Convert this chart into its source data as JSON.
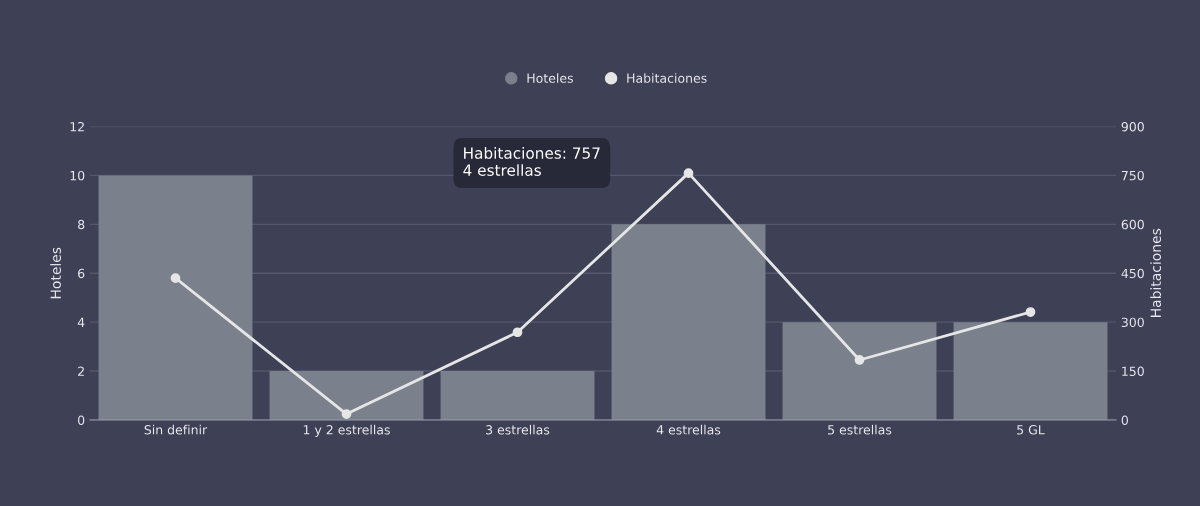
{
  "chart_data": {
    "type": "bar",
    "categories": [
      "Sin definir",
      "1 y 2 estrellas",
      "3 estrellas",
      "4 estrellas",
      "5 estrellas",
      "5 GL"
    ],
    "series": [
      {
        "name": "Hoteles",
        "color": "#7a808c",
        "values": [
          10,
          2,
          2,
          8,
          4,
          4
        ]
      },
      {
        "name": "Habitaciones",
        "type": "line",
        "axis": "y2",
        "color": "#e6e6e6",
        "values": [
          435,
          18,
          269,
          757,
          184,
          331
        ]
      }
    ],
    "ylabel": "Hoteles",
    "y2label": "Habitaciones",
    "ylim": [
      0,
      12
    ],
    "yticks": [
      0,
      2,
      4,
      6,
      8,
      10,
      12
    ],
    "y2lim": [
      0,
      900
    ],
    "y2ticks": [
      0,
      150,
      300,
      450,
      600,
      750,
      900
    ],
    "annotations": [
      "Habitaciones: 757\n4 estrellas"
    ],
    "grid": "y",
    "legend": "top",
    "marker": "circle",
    "line_style": "solid"
  }
}
